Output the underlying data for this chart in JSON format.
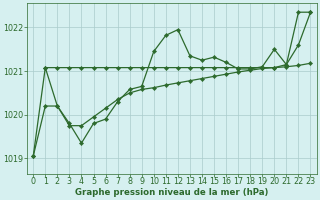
{
  "bg_color": "#d6f0f0",
  "line_color": "#2d6a2d",
  "grid_color": "#aacccc",
  "xlabel": "Graphe pression niveau de la mer (hPa)",
  "ylim": [
    1018.65,
    1022.55
  ],
  "yticks": [
    1019,
    1020,
    1021,
    1022
  ],
  "xticks": [
    0,
    1,
    2,
    3,
    4,
    5,
    6,
    7,
    8,
    9,
    10,
    11,
    12,
    13,
    14,
    15,
    16,
    17,
    18,
    19,
    20,
    21,
    22,
    23
  ],
  "lineA_x": [
    0,
    1,
    2,
    3,
    4,
    5,
    6,
    7,
    8,
    9,
    10,
    11,
    12,
    13,
    14,
    15,
    16,
    17,
    18,
    19,
    20,
    21,
    22,
    23
  ],
  "lineA_y": [
    1019.05,
    1021.08,
    1021.08,
    1021.08,
    1021.08,
    1021.08,
    1021.08,
    1021.08,
    1021.08,
    1021.08,
    1021.08,
    1021.08,
    1021.08,
    1021.08,
    1021.08,
    1021.08,
    1021.08,
    1021.08,
    1021.08,
    1021.08,
    1021.08,
    1021.15,
    1021.6,
    1022.35
  ],
  "lineB_x": [
    1,
    2,
    3,
    4,
    5,
    6,
    7,
    8,
    9,
    10,
    11,
    12,
    13,
    14,
    15,
    16,
    17,
    18,
    19,
    20,
    21,
    22,
    23
  ],
  "lineB_y": [
    1021.08,
    1020.2,
    1019.8,
    1019.35,
    1019.8,
    1019.9,
    1020.3,
    1020.58,
    1020.65,
    1021.45,
    1021.82,
    1021.95,
    1021.35,
    1021.25,
    1021.32,
    1021.2,
    1021.05,
    1021.05,
    1021.1,
    1021.5,
    1021.15,
    1022.35,
    1022.35
  ],
  "lineC_x": [
    0,
    1,
    2,
    3,
    4,
    5,
    6,
    7,
    8,
    9,
    10,
    11,
    12,
    13,
    14,
    15,
    16,
    17,
    18,
    19,
    20,
    21,
    22,
    23
  ],
  "lineC_y": [
    1019.05,
    1020.2,
    1020.2,
    1019.75,
    1019.75,
    1019.95,
    1020.15,
    1020.35,
    1020.5,
    1020.58,
    1020.62,
    1020.68,
    1020.73,
    1020.78,
    1020.83,
    1020.88,
    1020.93,
    1020.98,
    1021.02,
    1021.06,
    1021.08,
    1021.1,
    1021.13,
    1021.18
  ]
}
